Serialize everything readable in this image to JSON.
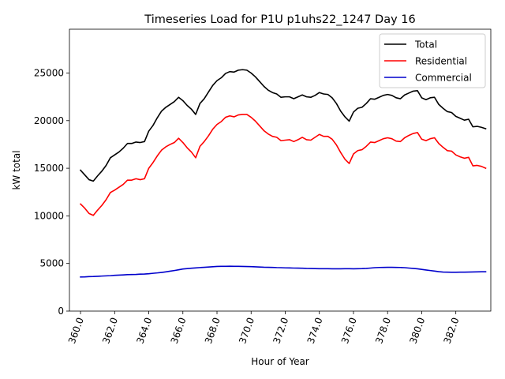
{
  "chart_data": {
    "type": "line",
    "title": "Timeseries Load for P1U p1uhs22_1247  Day 16",
    "xlabel": "Hour of Year",
    "ylabel": "kW total",
    "xlim": [
      359.35,
      384.05
    ],
    "ylim": [
      0,
      29600
    ],
    "xticks": [
      360,
      362,
      364,
      366,
      368,
      370,
      372,
      374,
      376,
      378,
      380,
      382
    ],
    "xtick_labels": [
      "360.0",
      "362.0",
      "364.0",
      "366.0",
      "368.0",
      "370.0",
      "372.0",
      "374.0",
      "376.0",
      "378.0",
      "380.0",
      "382.0"
    ],
    "yticks": [
      0,
      5000,
      10000,
      15000,
      20000,
      25000
    ],
    "ytick_labels": [
      "0",
      "5000",
      "10000",
      "15000",
      "20000",
      "25000"
    ],
    "legend_position": "top-right",
    "x": [
      360.0,
      360.25,
      360.5,
      360.75,
      361.0,
      361.25,
      361.5,
      361.75,
      362.0,
      362.25,
      362.5,
      362.75,
      363.0,
      363.25,
      363.5,
      363.75,
      364.0,
      364.25,
      364.5,
      364.75,
      365.0,
      365.25,
      365.5,
      365.75,
      366.0,
      366.25,
      366.5,
      366.75,
      367.0,
      367.25,
      367.5,
      367.75,
      368.0,
      368.25,
      368.5,
      368.75,
      369.0,
      369.25,
      369.5,
      369.75,
      370.0,
      370.25,
      370.5,
      370.75,
      371.0,
      371.25,
      371.5,
      371.75,
      372.0,
      372.25,
      372.5,
      372.75,
      373.0,
      373.25,
      373.5,
      373.75,
      374.0,
      374.25,
      374.5,
      374.75,
      375.0,
      375.25,
      375.5,
      375.75,
      376.0,
      376.25,
      376.5,
      376.75,
      377.0,
      377.25,
      377.5,
      377.75,
      378.0,
      378.25,
      378.5,
      378.75,
      379.0,
      379.25,
      379.5,
      379.75,
      380.0,
      380.25,
      380.5,
      380.75,
      381.0,
      381.25,
      381.5,
      381.75,
      382.0,
      382.25,
      382.5,
      382.75,
      383.0,
      383.25,
      383.5,
      383.75
    ],
    "series": [
      {
        "name": "Total",
        "color": "#000000",
        "values": [
          14800,
          14300,
          13800,
          13650,
          14200,
          14700,
          15300,
          16100,
          16400,
          16700,
          17100,
          17600,
          17600,
          17750,
          17700,
          17800,
          18900,
          19500,
          20300,
          21000,
          21400,
          21700,
          22000,
          22450,
          22100,
          21600,
          21200,
          20650,
          21800,
          22300,
          23000,
          23700,
          24200,
          24500,
          24950,
          25150,
          25100,
          25300,
          25350,
          25300,
          25000,
          24600,
          24100,
          23600,
          23200,
          22950,
          22800,
          22450,
          22500,
          22500,
          22300,
          22500,
          22700,
          22500,
          22450,
          22650,
          22950,
          22800,
          22750,
          22400,
          21800,
          21000,
          20400,
          19950,
          20900,
          21300,
          21400,
          21800,
          22300,
          22250,
          22450,
          22650,
          22750,
          22650,
          22400,
          22300,
          22700,
          22900,
          23100,
          23150,
          22400,
          22200,
          22400,
          22450,
          21700,
          21300,
          20950,
          20850,
          20450,
          20250,
          20050,
          20150,
          19350,
          19400,
          19300,
          19150
        ]
      },
      {
        "name": "Residential",
        "color": "#ff0000",
        "values": [
          11250,
          10800,
          10250,
          10050,
          10600,
          11100,
          11700,
          12450,
          12700,
          13000,
          13300,
          13750,
          13750,
          13900,
          13800,
          13900,
          15000,
          15600,
          16300,
          16900,
          17250,
          17500,
          17700,
          18150,
          17700,
          17150,
          16700,
          16100,
          17300,
          17800,
          18400,
          19100,
          19600,
          19900,
          20350,
          20500,
          20400,
          20600,
          20650,
          20650,
          20350,
          19950,
          19450,
          18950,
          18600,
          18350,
          18250,
          17900,
          17950,
          18000,
          17800,
          18000,
          18250,
          18000,
          17950,
          18250,
          18550,
          18350,
          18350,
          18050,
          17450,
          16650,
          15950,
          15500,
          16500,
          16850,
          16950,
          17300,
          17750,
          17700,
          17900,
          18100,
          18200,
          18100,
          17850,
          17800,
          18200,
          18450,
          18650,
          18750,
          18050,
          17900,
          18100,
          18200,
          17600,
          17200,
          16850,
          16800,
          16400,
          16200,
          16050,
          16150,
          15250,
          15300,
          15200,
          15000
        ]
      },
      {
        "name": "Commercial",
        "color": "#0000cc",
        "values": [
          3580,
          3590,
          3620,
          3630,
          3650,
          3680,
          3700,
          3720,
          3760,
          3780,
          3800,
          3830,
          3840,
          3850,
          3880,
          3890,
          3920,
          3970,
          4010,
          4060,
          4120,
          4190,
          4260,
          4340,
          4420,
          4460,
          4500,
          4530,
          4570,
          4600,
          4630,
          4660,
          4690,
          4700,
          4700,
          4710,
          4700,
          4700,
          4690,
          4680,
          4670,
          4650,
          4630,
          4610,
          4600,
          4590,
          4570,
          4560,
          4540,
          4530,
          4520,
          4510,
          4500,
          4480,
          4470,
          4460,
          4450,
          4450,
          4450,
          4440,
          4440,
          4440,
          4450,
          4450,
          4440,
          4450,
          4460,
          4480,
          4520,
          4560,
          4580,
          4590,
          4600,
          4600,
          4590,
          4580,
          4560,
          4520,
          4480,
          4440,
          4380,
          4320,
          4260,
          4200,
          4140,
          4100,
          4090,
          4080,
          4080,
          4090,
          4090,
          4100,
          4110,
          4120,
          4130,
          4130
        ]
      }
    ]
  }
}
